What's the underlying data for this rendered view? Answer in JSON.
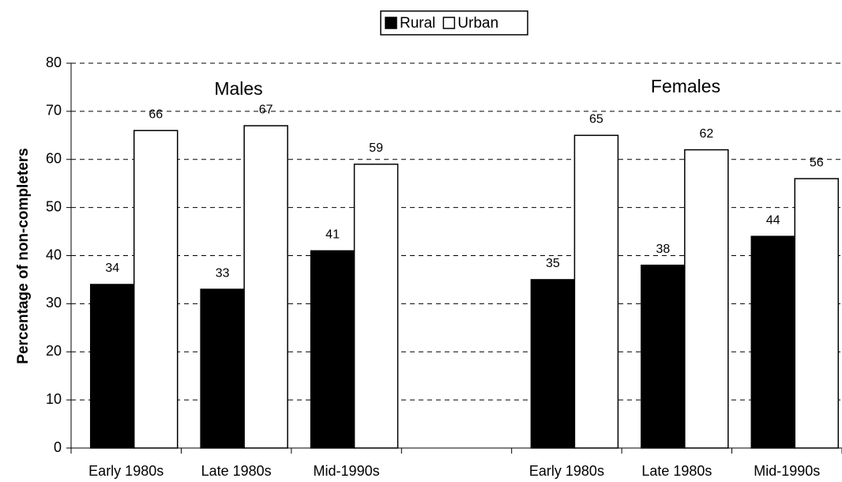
{
  "chart_data": {
    "type": "bar",
    "categories": [
      "Early 1980s",
      "Late 1980s",
      "Mid-1990s",
      null,
      "Early 1980s",
      "Late 1980s",
      "Mid-1990s"
    ],
    "series": [
      {
        "name": "Rural",
        "color": "#000000",
        "values": [
          34,
          33,
          41,
          null,
          35,
          38,
          44
        ]
      },
      {
        "name": "Urban",
        "color": "#ffffff",
        "values": [
          66,
          67,
          59,
          null,
          65,
          62,
          56
        ]
      }
    ],
    "ylabel": "Percentage of non-completers",
    "annotations": [
      "Males",
      "Females"
    ],
    "ylim": [
      0,
      80
    ],
    "yticks": [
      0,
      10,
      20,
      30,
      40,
      50,
      60,
      70,
      80
    ],
    "grid": true,
    "legend": "top"
  }
}
